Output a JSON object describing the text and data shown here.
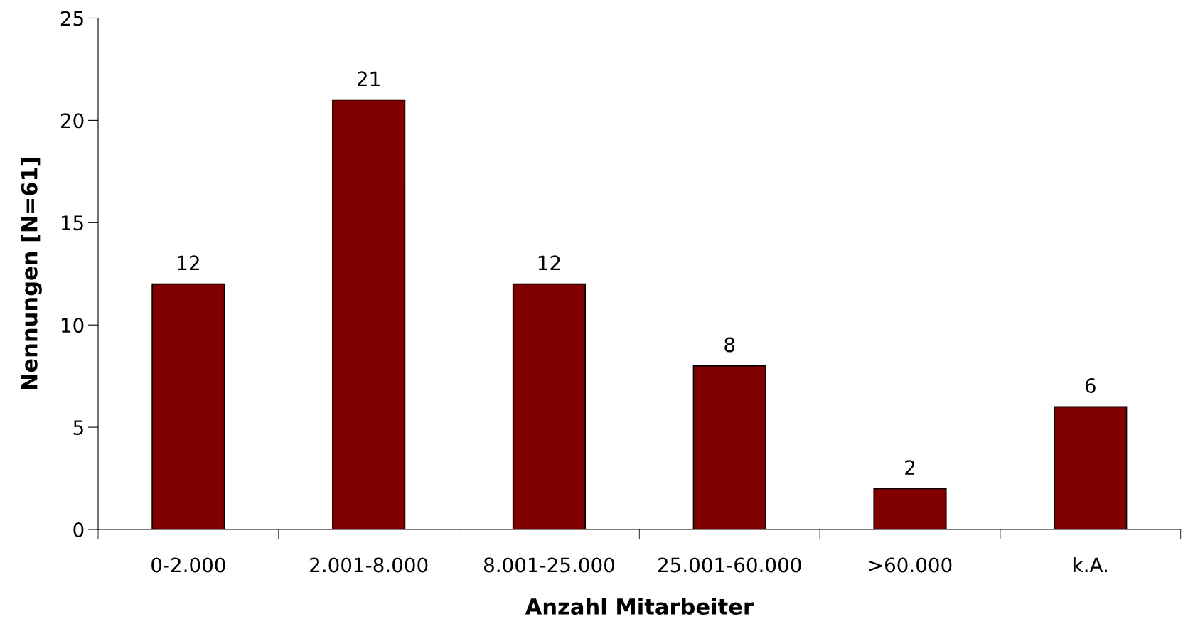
{
  "chart_data": {
    "type": "bar",
    "xlabel": "Anzahl Mitarbeiter",
    "ylabel": "Nennungen [N=61]",
    "categories": [
      "0-2.000",
      "2.001-8.000",
      "8.001-25.000",
      "25.001-60.000",
      ">60.000",
      "k.A."
    ],
    "values": [
      12,
      21,
      12,
      8,
      2,
      6
    ],
    "color": "#800000",
    "ylim": [
      0,
      25
    ],
    "yticks": [
      0,
      5,
      10,
      15,
      20,
      25
    ],
    "data_labels": true,
    "grid": false,
    "legend": false
  }
}
